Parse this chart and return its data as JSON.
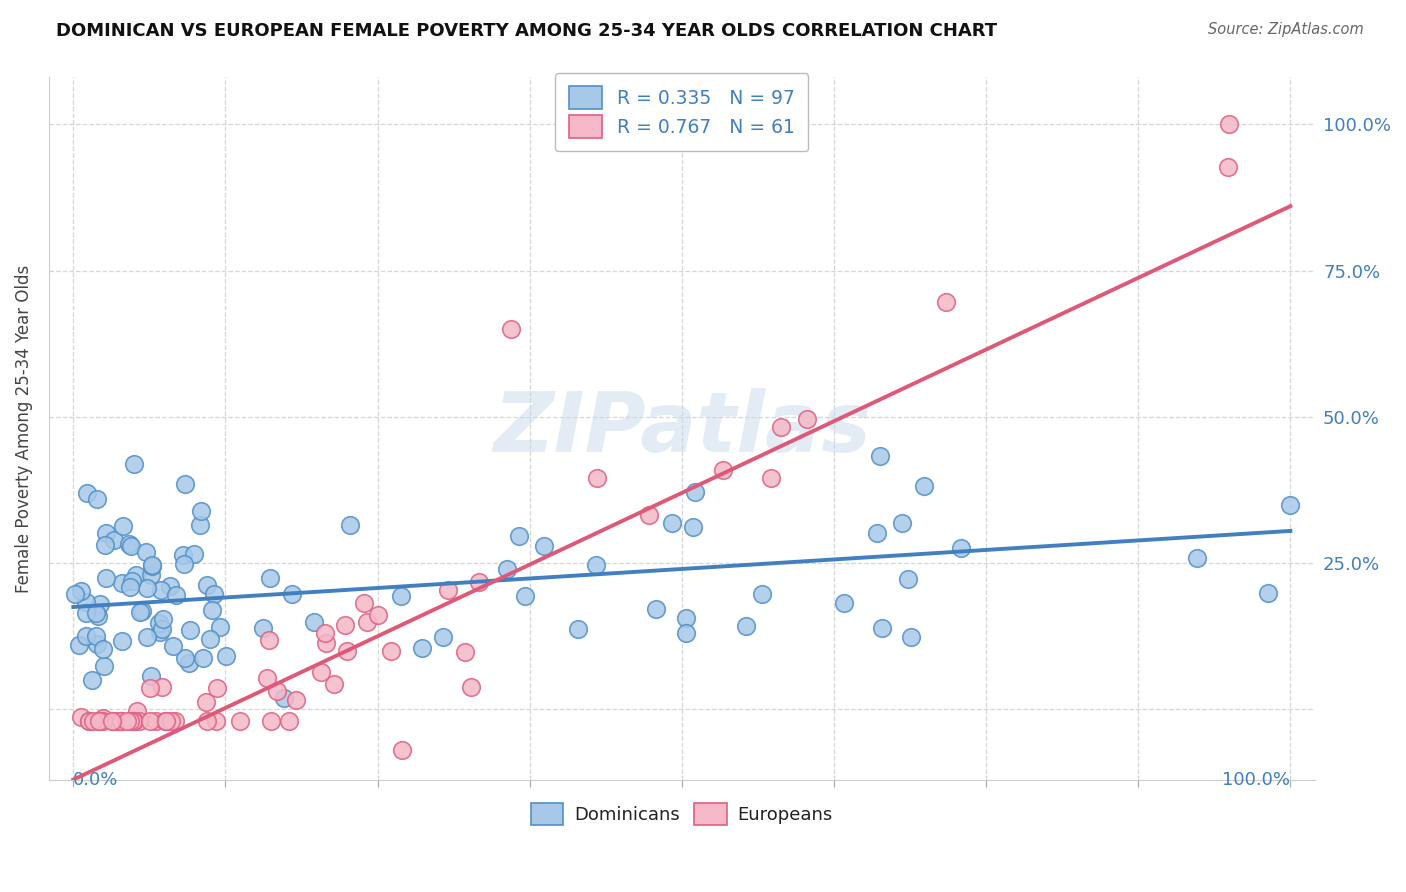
{
  "title": "DOMINICAN VS EUROPEAN FEMALE POVERTY AMONG 25-34 YEAR OLDS CORRELATION CHART",
  "source": "Source: ZipAtlas.com",
  "ylabel": "Female Poverty Among 25-34 Year Olds",
  "yticks": [
    0.0,
    0.25,
    0.5,
    0.75,
    1.0
  ],
  "ytick_labels": [
    "",
    "25.0%",
    "50.0%",
    "75.0%",
    "100.0%"
  ],
  "watermark": "ZIPatlas",
  "background_color": "#ffffff",
  "dominican_color": "#a8c8e8",
  "european_color": "#f4b8c8",
  "dominican_edge_color": "#5090c8",
  "european_edge_color": "#e06080",
  "dominican_line_color": "#4080c0",
  "european_line_color": "#e05878",
  "tick_label_color": "#4080c0",
  "dom_intercept": 0.175,
  "dom_slope": 0.13,
  "eur_intercept": -0.12,
  "eur_slope": 0.98,
  "seed": 12
}
